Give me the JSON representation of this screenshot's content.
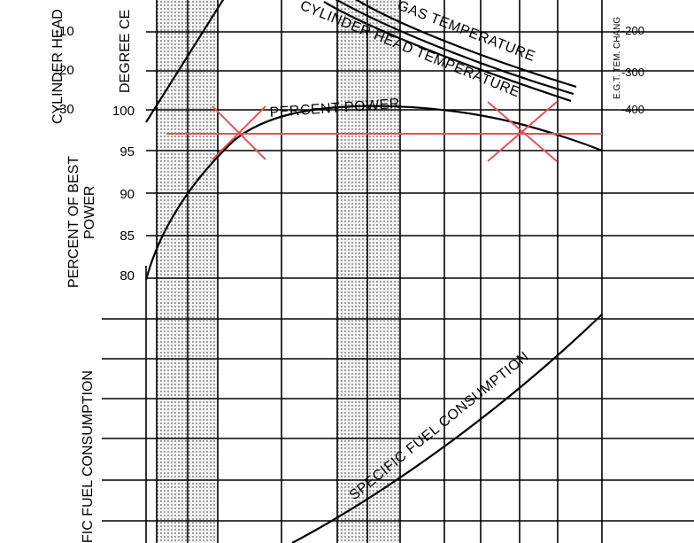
{
  "chart_data": {
    "type": "line",
    "axis_labels": {
      "cylinder_head": "CYLINDER HEAD",
      "degree": "DEGREE CE",
      "percent_best_power_1": "PERCENT OF BEST",
      "percent_best_power_2": "POWER",
      "specific_fuel": "FIC FUEL CONSUMPTION",
      "egt_change": "E.G.T. TEM. CHANG"
    },
    "cylinder_head_ticks": [
      "-10",
      "-20",
      "-30"
    ],
    "percent_ticks": [
      "100",
      "95",
      "90",
      "85",
      "80"
    ],
    "egt_ticks": [
      "-200",
      "-300",
      "-400"
    ],
    "curve_labels": {
      "exhaust_gas": "GAS TEMPERATURE",
      "cylinder_head_temp": "CYLINDER HEAD TEMPERATURE",
      "percent_power": "PERCENT POWER",
      "specific_fuel": "SPECIFIC FUEL CONSUMPTION"
    },
    "series": [
      {
        "name": "PERCENT POWER",
        "y": [
          80,
          90,
          95,
          97.5,
          99,
          100,
          100,
          99.7,
          99,
          98,
          96.5,
          95
        ]
      },
      {
        "name": "GAS TEMPERATURE",
        "direction": "decreasing"
      },
      {
        "name": "CYLINDER HEAD TEMPERATURE",
        "direction": "decreasing"
      },
      {
        "name": "SPECIFIC FUEL CONSUMPTION",
        "direction": "increasing"
      }
    ],
    "ylim": [
      80,
      100
    ],
    "grid": true,
    "shaded_bands": 2,
    "annotations": {
      "reference_line_percent": 97,
      "marker_count": 2,
      "marker_color": "#e8505a"
    }
  }
}
